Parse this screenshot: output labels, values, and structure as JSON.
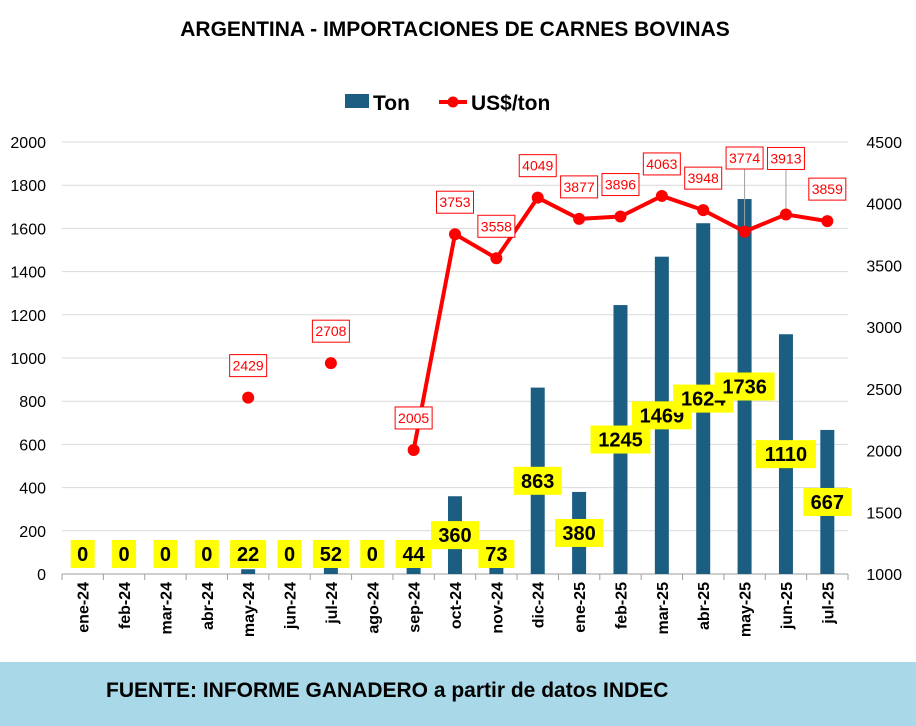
{
  "footer": {
    "text": "FUENTE: INFORME GANADERO a partir de datos INDEC"
  },
  "colors": {
    "bar": "#1b5e82",
    "line": "#ff0000",
    "label_bg": "#ffff00",
    "grid": "#d9d9d9",
    "footer_bg": "#a9d8e8"
  },
  "chart_data": {
    "type": "bar+line",
    "title": "ARGENTINA - IMPORTACIONES DE CARNES BOVINAS",
    "categories": [
      "ene-24",
      "feb-24",
      "mar-24",
      "abr-24",
      "may-24",
      "jun-24",
      "jul-24",
      "ago-24",
      "sep-24",
      "oct-24",
      "nov-24",
      "dic-24",
      "ene-25",
      "feb-25",
      "mar-25",
      "abr-25",
      "may-25",
      "jun-25",
      "jul-25"
    ],
    "series": [
      {
        "name": "Ton",
        "type": "bar",
        "axis": "left",
        "values": [
          0,
          0,
          0,
          0,
          22,
          0,
          52,
          0,
          44,
          360,
          73,
          863,
          380,
          1245,
          1469,
          1624,
          1736,
          1110,
          667
        ]
      },
      {
        "name": "US$/ton",
        "type": "line",
        "axis": "right",
        "values": [
          null,
          null,
          null,
          null,
          2429,
          null,
          2708,
          null,
          2005,
          3753,
          3558,
          4049,
          3877,
          3896,
          4063,
          3948,
          3774,
          3913,
          3859
        ]
      }
    ],
    "y_left": {
      "min": 0,
      "max": 2000,
      "ticks": [
        0,
        200,
        400,
        600,
        800,
        1000,
        1200,
        1400,
        1600,
        1800,
        2000
      ]
    },
    "y_right": {
      "min": 1000,
      "max": 4500,
      "ticks": [
        1000,
        1500,
        2000,
        2500,
        3000,
        3500,
        4000,
        4500
      ]
    },
    "grid": true,
    "legend": "top-center"
  }
}
